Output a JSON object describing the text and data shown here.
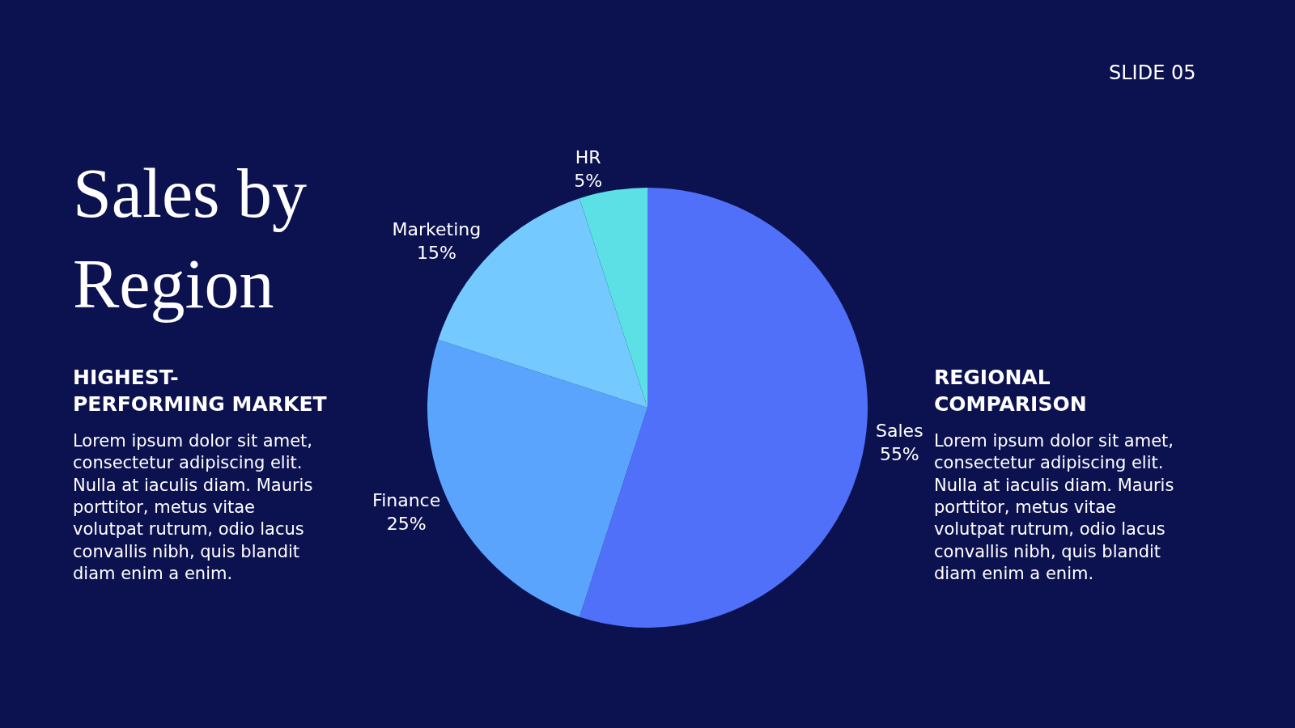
{
  "chart_data": {
    "type": "pie",
    "title": "Sales by\nRegion",
    "categories": [
      "Sales",
      "Finance",
      "Marketing",
      "HR"
    ],
    "values": [
      55,
      25,
      15,
      5
    ],
    "value_labels": [
      "55%",
      "25%",
      "15%",
      "5%"
    ],
    "colors": [
      "#5070fa",
      "#5ba4fe",
      "#74c9fe",
      "#5ce0e6"
    ],
    "legend": false,
    "annotations": [
      "SLIDE 05",
      "HIGHEST-\nPERFORMING MARKET",
      "Lorem ipsum dolor sit amet,\nconsectetur adipiscing elit.\nNulla at iaculis diam. Mauris\nporttitor, metus vitae\nvolutpat rutrum, odio lacus\nconvallis nibh, quis blandit\ndiam enim a enim.",
      "REGIONAL\nCOMPARISON",
      "Lorem ipsum dolor sit amet,\nconsectetur adipiscing elit.\nNulla at iaculis diam. Mauris\nporttitor, metus vitae\nvolutpat rutrum, odio lacus\nconvallis nibh, quis blandit\ndiam enim a enim."
    ]
  }
}
